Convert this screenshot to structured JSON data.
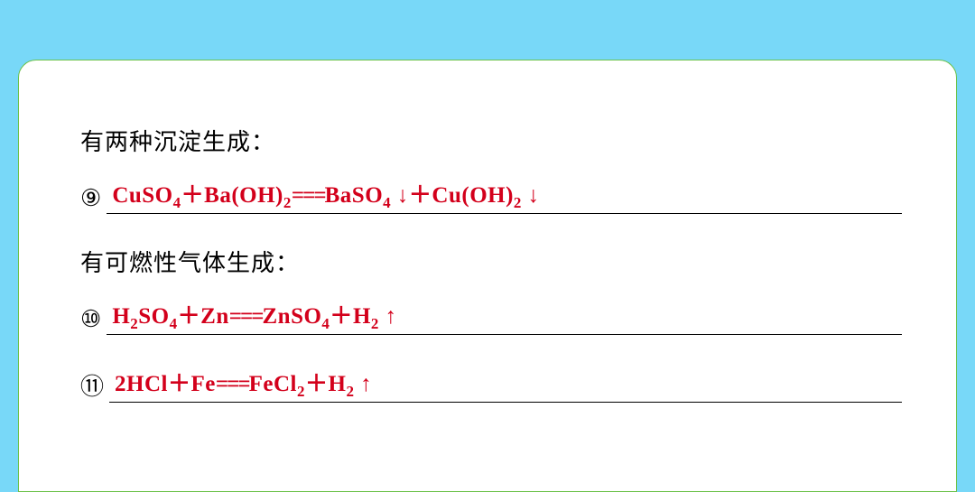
{
  "colors": {
    "page_background": "#78d8f8",
    "card_background": "#ffffff",
    "card_border": "#6cc24a",
    "text": "#000000",
    "equation": "#d3001b"
  },
  "sections": [
    {
      "desc": "有两种沉淀生成：",
      "items": [
        {
          "num": "⑨",
          "eq_html": "CuSO<sub>4</sub><span class='plus'>＋</span>Ba(OH)<sub>2</sub><span class='eqsign'>===</span>BaSO<sub>4</sub>&nbsp;<span class='arrow'>↓</span><span class='plus'>＋</span>Cu(OH)<sub>2</sub>&nbsp;<span class='arrow'>↓</span>"
        }
      ]
    },
    {
      "desc": "有可燃性气体生成：",
      "items": [
        {
          "num": "⑩",
          "eq_html": "H<sub>2</sub>SO<sub>4</sub><span class='plus'>＋</span>Zn<span class='eqsign'>===</span>ZnSO<sub>4</sub><span class='plus'>＋</span>H<sub>2</sub>&nbsp;<span class='arrow'>↑</span>"
        },
        {
          "num": "⑪",
          "eq_html": "2HCl<span class='plus'>＋</span>Fe<span class='eqsign'>===</span>FeCl<sub>2</sub><span class='plus'>＋</span>H<sub>2</sub>&nbsp;<span class='arrow'>↑</span>"
        }
      ]
    }
  ]
}
